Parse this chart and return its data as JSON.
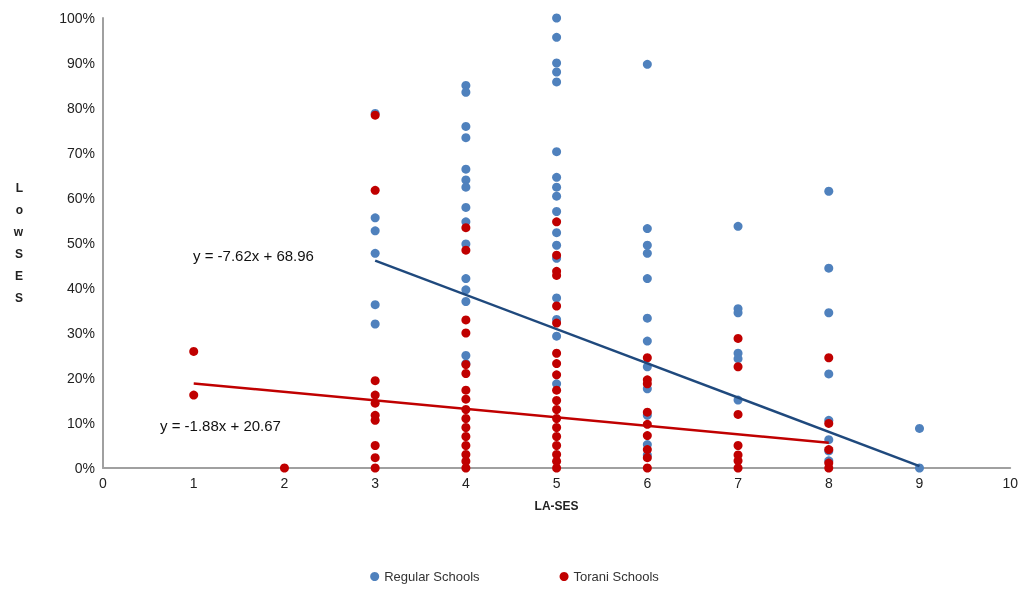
{
  "chart_data": {
    "type": "scatter",
    "xlabel": "LA-SES",
    "ylabel": "LowSES",
    "xlim": [
      0,
      10
    ],
    "xticks": [
      0,
      1,
      2,
      3,
      4,
      5,
      6,
      7,
      8,
      9,
      10
    ],
    "ylim": [
      0,
      100
    ],
    "yticks": [
      {
        "value": 0,
        "label": "0%"
      },
      {
        "value": 10,
        "label": "10%"
      },
      {
        "value": 20,
        "label": "20%"
      },
      {
        "value": 30,
        "label": "30%"
      },
      {
        "value": 40,
        "label": "40%"
      },
      {
        "value": 50,
        "label": "50%"
      },
      {
        "value": 60,
        "label": "60%"
      },
      {
        "value": 70,
        "label": "70%"
      },
      {
        "value": 80,
        "label": "80%"
      },
      {
        "value": 90,
        "label": "90%"
      },
      {
        "value": 100,
        "label": "100%"
      }
    ],
    "legend": "bottom",
    "series": [
      {
        "name": "Regular Schools",
        "color": "#4f81bd",
        "marker": "circle",
        "x": [
          3,
          3,
          3,
          3,
          3,
          3,
          4,
          4,
          4,
          4,
          4,
          4,
          4,
          4,
          4,
          4,
          4,
          4,
          4,
          4,
          4,
          5,
          5,
          5,
          5,
          5,
          5,
          5,
          5,
          5,
          5,
          5,
          5,
          5,
          5,
          5,
          5,
          5,
          6,
          6,
          6,
          6,
          6,
          6,
          6,
          6,
          6,
          6,
          6,
          6,
          7,
          7,
          7,
          7,
          7,
          7,
          8,
          8,
          8,
          8,
          8,
          8,
          8,
          8,
          9,
          9
        ],
        "values": [
          78.8,
          55.6,
          52.7,
          47.7,
          36.3,
          32,
          85,
          83.5,
          75.9,
          73.4,
          66.4,
          64,
          62.4,
          57.9,
          54.7,
          49.8,
          42.1,
          39.6,
          37,
          25,
          23.2,
          100,
          95.7,
          90,
          88,
          85.8,
          70.3,
          64.6,
          62.4,
          60.4,
          57,
          52.3,
          49.5,
          46.6,
          37.8,
          33,
          29.3,
          18.7,
          89.7,
          53.2,
          49.5,
          47.7,
          42.1,
          33.3,
          28.2,
          22.5,
          17.6,
          11.7,
          5.2,
          2.9,
          53.7,
          35.4,
          34.5,
          25.5,
          24.3,
          15.1,
          61.5,
          44.4,
          34.5,
          20.9,
          10.6,
          6.3,
          3.8,
          1.6,
          8.8,
          0
        ]
      },
      {
        "name": "Torani Schools",
        "color": "#c00000",
        "marker": "circle",
        "x": [
          1,
          1,
          2,
          3,
          3,
          3,
          3,
          3,
          3,
          3,
          3,
          3,
          3,
          4,
          4,
          4,
          4,
          4,
          4,
          4,
          4,
          4,
          4,
          4,
          4,
          4,
          4,
          4,
          4,
          5,
          5,
          5,
          5,
          5,
          5,
          5,
          5,
          5,
          5,
          5,
          5,
          5,
          5,
          5,
          5,
          5,
          5,
          5,
          6,
          6,
          6,
          6,
          6,
          6,
          6,
          6,
          6,
          7,
          7,
          7,
          7,
          7,
          7,
          7,
          8,
          8,
          8,
          8,
          8
        ],
        "values": [
          25.9,
          16.2,
          0,
          78.4,
          61.7,
          19.4,
          16.2,
          14.4,
          11.7,
          10.6,
          5,
          2.3,
          0,
          53.4,
          48.4,
          32.9,
          30,
          23,
          21,
          17.3,
          15.3,
          13,
          11,
          9,
          7,
          5,
          3,
          1.5,
          0,
          54.7,
          47.3,
          43.7,
          42.8,
          36,
          32.2,
          25.5,
          23.2,
          20.7,
          17.3,
          15,
          13,
          11,
          9,
          7,
          5,
          3,
          1.5,
          0,
          24.5,
          19.6,
          18.7,
          12.4,
          9.7,
          7.2,
          4.1,
          2.3,
          0,
          28.8,
          22.5,
          11.9,
          5,
          2.9,
          1.6,
          0,
          24.5,
          9.9,
          4.1,
          1.1,
          0
        ]
      },
      {
        "type": "line",
        "color": "#1f497d",
        "marker": "none",
        "x": [
          3,
          9
        ],
        "values": [
          46.1,
          0.4
        ]
      },
      {
        "type": "line",
        "color": "#c00000",
        "marker": "none",
        "x": [
          1,
          8
        ],
        "values": [
          18.8,
          5.6
        ]
      }
    ],
    "annotations": [
      "y = -7.62x + 68.96",
      "y = -1.88x + 20.67"
    ]
  }
}
